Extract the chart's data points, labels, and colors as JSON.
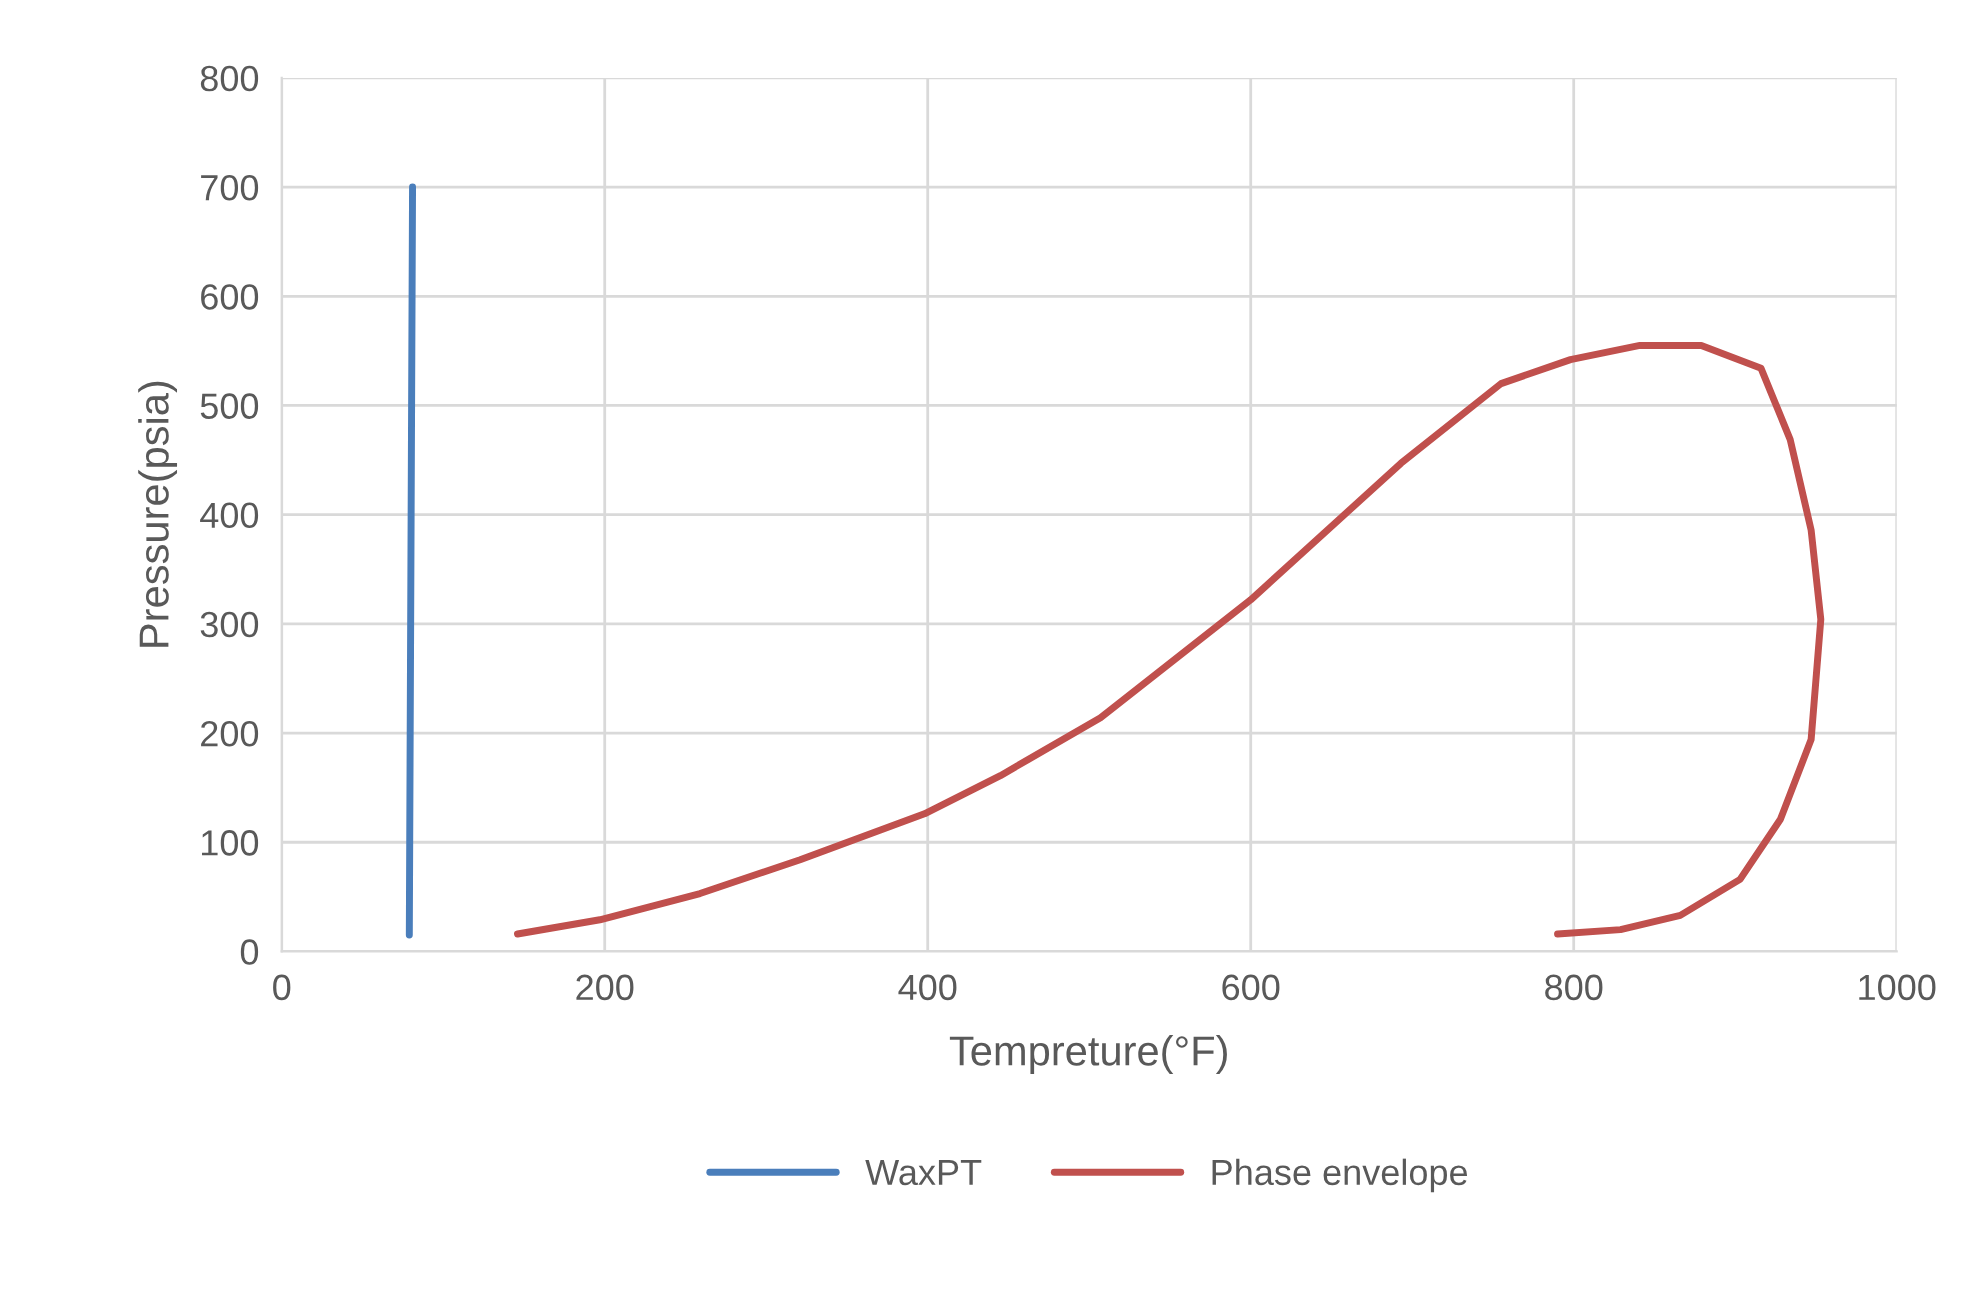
{
  "chart_data": {
    "type": "line",
    "xlabel": "Tempreture(°F)",
    "ylabel": "Pressure(psia)",
    "xlim": [
      0,
      1000
    ],
    "xticks": [
      0,
      200,
      400,
      600,
      800,
      1000
    ],
    "ylim": [
      0,
      800
    ],
    "yticks": [
      0,
      100,
      200,
      300,
      400,
      500,
      600,
      700,
      800
    ],
    "grid": true,
    "legend": "bottom",
    "marker": "none",
    "line_style": "solid",
    "series": [
      {
        "name": "WaxPT",
        "color": "#4a7ebb",
        "x": [
          79,
          81
        ],
        "values": [
          15,
          700
        ]
      },
      {
        "name": "Phase envelope",
        "color": "#c0504d",
        "x": [
          146,
          197,
          259,
          321,
          398,
          445,
          507,
          600,
          693,
          755,
          798,
          841,
          879,
          916,
          934,
          947,
          953,
          947,
          928,
          903,
          866,
          829,
          790
        ],
        "values": [
          16,
          29,
          53,
          84,
          126,
          161,
          214,
          322,
          447,
          520,
          542,
          555,
          555,
          534,
          469,
          386,
          304,
          194,
          121,
          66,
          33,
          20,
          16
        ]
      }
    ]
  }
}
